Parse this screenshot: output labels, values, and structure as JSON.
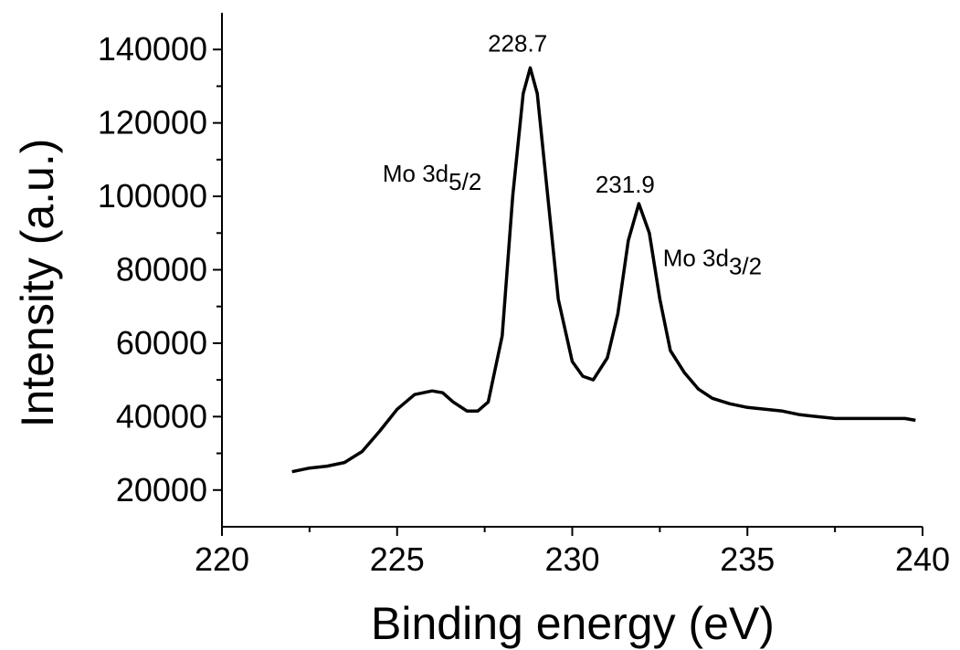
{
  "chart_data": {
    "type": "line",
    "xlabel": "Binding energy (eV)",
    "ylabel": "Intensity (a.u.)",
    "xlim": [
      220,
      240
    ],
    "ylim": [
      10000,
      150000
    ],
    "x_ticks": [
      "220",
      "225",
      "230",
      "235",
      "240"
    ],
    "y_ticks": [
      "20000",
      "40000",
      "60000",
      "80000",
      "100000",
      "120000",
      "140000"
    ],
    "grid": false,
    "series": [
      {
        "color": "#000000",
        "x": [
          222.0,
          222.5,
          223.0,
          223.5,
          224.0,
          224.5,
          225.0,
          225.5,
          226.0,
          226.3,
          226.6,
          227.0,
          227.3,
          227.6,
          228.0,
          228.3,
          228.6,
          228.8,
          229.0,
          229.3,
          229.6,
          230.0,
          230.3,
          230.6,
          231.0,
          231.3,
          231.6,
          231.9,
          232.2,
          232.5,
          232.8,
          233.2,
          233.6,
          234.0,
          234.5,
          235.0,
          235.5,
          236.0,
          236.5,
          237.0,
          237.5,
          238.0,
          238.5,
          239.0,
          239.5,
          239.8
        ],
        "y": [
          25000,
          26000,
          26500,
          27500,
          30500,
          36000,
          42000,
          46000,
          47000,
          46500,
          44000,
          41500,
          41500,
          44000,
          62000,
          100000,
          128000,
          135000,
          128000,
          100000,
          72000,
          55000,
          51000,
          50000,
          56000,
          68000,
          88000,
          98000,
          90000,
          72000,
          58000,
          52000,
          47500,
          45000,
          43500,
          42500,
          42000,
          41500,
          40500,
          40000,
          39500,
          39500,
          39500,
          39500,
          39500,
          39000
        ]
      }
    ],
    "annotations": [
      {
        "text": "228.7",
        "x": 228.7,
        "y": 135000
      },
      {
        "text": "231.9",
        "x": 231.9,
        "y": 98000
      },
      {
        "main": "Mo 3d",
        "sub": "5/2",
        "x": 226.0,
        "y": 104000
      },
      {
        "main": "Mo 3d",
        "sub": "3/2",
        "x": 234.0,
        "y": 81000
      }
    ]
  }
}
